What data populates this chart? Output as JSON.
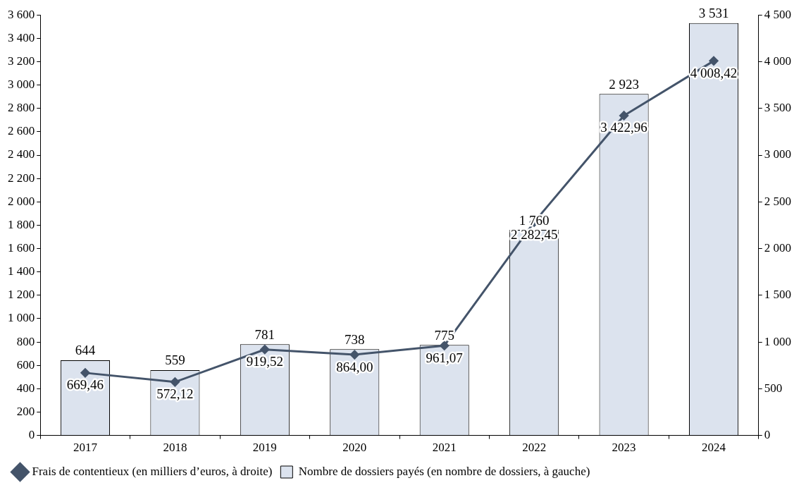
{
  "chart_data": {
    "type": "bar",
    "categories": [
      "2017",
      "2018",
      "2019",
      "2020",
      "2021",
      "2022",
      "2023",
      "2024"
    ],
    "ylim": [
      0,
      3600
    ],
    "yticks": [
      0,
      {
        "value": 200,
        "label": "200"
      },
      {
        "value": 400,
        "label": "400"
      },
      {
        "value": 600,
        "label": "600"
      },
      {
        "value": 800,
        "label": "800"
      },
      {
        "value": 1000,
        "label": "1 000"
      },
      {
        "value": 1200,
        "label": "1 200"
      },
      {
        "value": 1400,
        "label": "1 400"
      },
      {
        "value": 1600,
        "label": "1 600"
      },
      {
        "value": 1800,
        "label": "1 800"
      },
      {
        "value": 2000,
        "label": "2 000"
      },
      {
        "value": 2200,
        "label": "2 200"
      },
      {
        "value": 2400,
        "label": "2 400"
      },
      {
        "value": 2600,
        "label": "2 600"
      },
      {
        "value": 2800,
        "label": "2 800"
      },
      {
        "value": 3000,
        "label": "3 000"
      },
      {
        "value": 3200,
        "label": "3 200"
      },
      {
        "value": 3400,
        "label": "3 400"
      },
      {
        "value": 3600,
        "label": "3 600"
      }
    ],
    "y2lim": [
      0,
      4500
    ],
    "y2ticks": [
      0,
      500,
      {
        "value": 1000,
        "label": "1 000"
      },
      {
        "value": 1500,
        "label": "1 500"
      },
      {
        "value": 2000,
        "label": "2 000"
      },
      {
        "value": 2500,
        "label": "2 500"
      },
      {
        "value": 3000,
        "label": "3 000"
      },
      {
        "value": 3500,
        "label": "3 500"
      },
      {
        "value": 4000,
        "label": "4 000"
      },
      {
        "value": 4500,
        "label": "4 500"
      }
    ],
    "legend": "bottom left",
    "marker": "diamond",
    "series": [
      {
        "type": "line",
        "axis": "y2",
        "name": "Frais de contentieux (en milliers d’euros, à droite)",
        "color": "#44546a",
        "values": [
          669.46,
          572.12,
          919.52,
          864.0,
          961.07,
          2282.45,
          3422.96,
          4008.42
        ],
        "value_labels": [
          "669,46",
          "572,12",
          "919,52",
          "864,00",
          "961,07",
          "2 282,45",
          "3 422,96",
          "4 008,42"
        ]
      },
      {
        "name": "Nombre de dossiers payés (en nombre de dossiers, à gauche)",
        "color": "#dce3ee",
        "values": [
          644,
          559,
          781,
          738,
          775,
          1760,
          2923,
          3531
        ],
        "value_labels": [
          "644",
          "559",
          "781",
          "738",
          "775",
          "1 760",
          "2 923",
          "3 531"
        ]
      }
    ]
  }
}
